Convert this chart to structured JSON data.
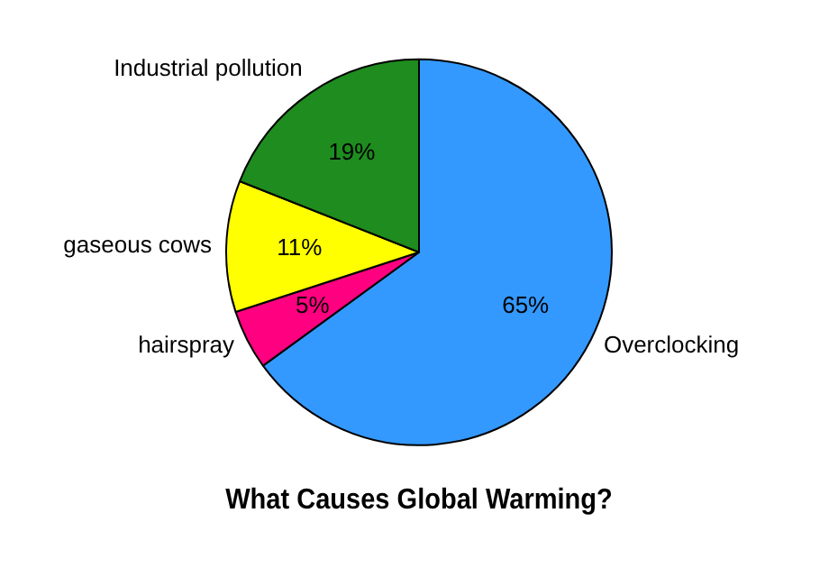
{
  "chart_data": {
    "type": "pie",
    "title": "What Causes Global Warming?",
    "categories": [
      "Overclocking",
      "hairspray",
      "gaseous cows",
      "Industrial pollution"
    ],
    "values": [
      65,
      5,
      11,
      19
    ],
    "value_labels": [
      "65%",
      "5%",
      "11%",
      "19%"
    ],
    "colors": [
      "#3399ff",
      "#ff0080",
      "#ffff00",
      "#1e8c1e"
    ],
    "legend": false
  }
}
